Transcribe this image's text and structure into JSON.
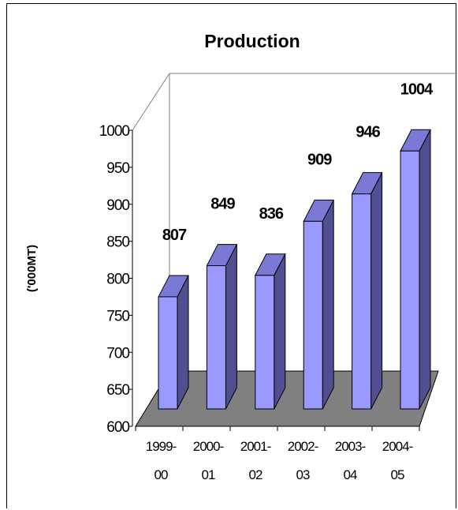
{
  "chart_data": {
    "type": "bar",
    "title": "Production",
    "ylabel": "('000MT)",
    "xlabel": "",
    "categories": [
      [
        "1999-",
        "00"
      ],
      [
        "2000-",
        "01"
      ],
      [
        "2001-",
        "02"
      ],
      [
        "2002-",
        "03"
      ],
      [
        "2003-",
        "04"
      ],
      [
        "2004-",
        "05"
      ]
    ],
    "values": [
      807,
      849,
      836,
      909,
      946,
      1004
    ],
    "data_labels": [
      "807",
      "849",
      "836",
      "909",
      "946",
      "1004"
    ],
    "ylim": [
      600,
      1000
    ],
    "yticks": [
      "600",
      "650",
      "700",
      "750",
      "800",
      "850",
      "900",
      "950",
      "1000"
    ],
    "three_d": true,
    "legend": "none",
    "colors": {
      "bar_front": "#9999ff",
      "bar_side": "#4f4f91",
      "bar_top": "#7a7ad6",
      "floor": "#808080"
    }
  }
}
